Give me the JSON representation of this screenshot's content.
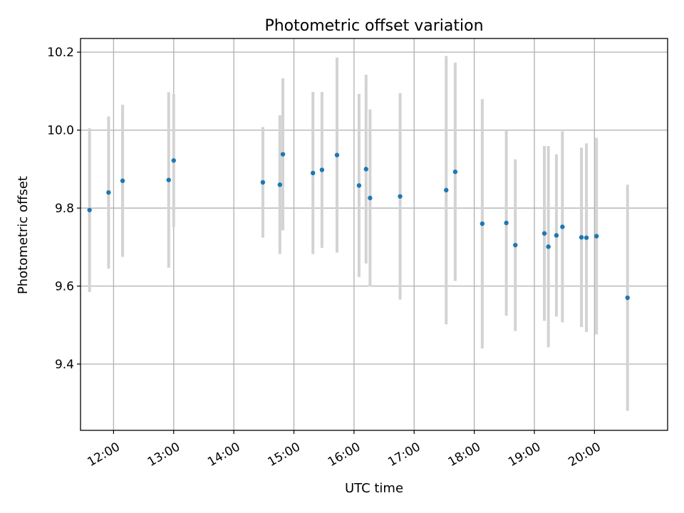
{
  "chart_data": {
    "type": "scatter",
    "title": "Photometric offset variation",
    "xlabel": "UTC time",
    "ylabel": "Photometric offset",
    "xlim": [
      "11:27",
      "21:13"
    ],
    "ylim": [
      9.23,
      10.235
    ],
    "x_ticks": [
      "12:00",
      "13:00",
      "14:00",
      "15:00",
      "16:00",
      "17:00",
      "18:00",
      "19:00",
      "20:00"
    ],
    "y_ticks": [
      "9.4",
      "9.6",
      "9.8",
      "10.0",
      "10.2"
    ],
    "grid": true,
    "colors": {
      "point": "#1f77b4",
      "errorbar": "#d3d3d3",
      "grid": "#b0b0b0"
    },
    "series": [
      {
        "points": [
          {
            "x": "11:36",
            "y": 9.795,
            "err": 0.21
          },
          {
            "x": "11:55",
            "y": 9.84,
            "err": 0.195
          },
          {
            "x": "12:09",
            "y": 9.87,
            "err": 0.195
          },
          {
            "x": "12:55",
            "y": 9.872,
            "err": 0.225
          },
          {
            "x": "13:00",
            "y": 9.922,
            "err": 0.17
          },
          {
            "x": "14:29",
            "y": 9.866,
            "err": 0.142
          },
          {
            "x": "14:46",
            "y": 9.86,
            "err": 0.178
          },
          {
            "x": "14:49",
            "y": 9.938,
            "err": 0.195
          },
          {
            "x": "15:19",
            "y": 9.89,
            "err": 0.208
          },
          {
            "x": "15:28",
            "y": 9.898,
            "err": 0.2
          },
          {
            "x": "15:43",
            "y": 9.936,
            "err": 0.25
          },
          {
            "x": "16:05",
            "y": 9.858,
            "err": 0.235
          },
          {
            "x": "16:12",
            "y": 9.9,
            "err": 0.242
          },
          {
            "x": "16:16",
            "y": 9.826,
            "err": 0.227
          },
          {
            "x": "16:46",
            "y": 9.83,
            "err": 0.265
          },
          {
            "x": "17:32",
            "y": 9.846,
            "err": 0.344
          },
          {
            "x": "17:41",
            "y": 9.893,
            "err": 0.28
          },
          {
            "x": "18:08",
            "y": 9.76,
            "err": 0.32
          },
          {
            "x": "18:32",
            "y": 9.762,
            "err": 0.238
          },
          {
            "x": "18:41",
            "y": 9.705,
            "err": 0.22
          },
          {
            "x": "19:10",
            "y": 9.735,
            "err": 0.224
          },
          {
            "x": "19:14",
            "y": 9.701,
            "err": 0.258
          },
          {
            "x": "19:22",
            "y": 9.73,
            "err": 0.208
          },
          {
            "x": "19:28",
            "y": 9.752,
            "err": 0.245
          },
          {
            "x": "19:47",
            "y": 9.725,
            "err": 0.23
          },
          {
            "x": "19:52",
            "y": 9.724,
            "err": 0.242
          },
          {
            "x": "20:02",
            "y": 9.728,
            "err": 0.252
          },
          {
            "x": "20:33",
            "y": 9.57,
            "err": 0.29
          }
        ]
      }
    ]
  }
}
